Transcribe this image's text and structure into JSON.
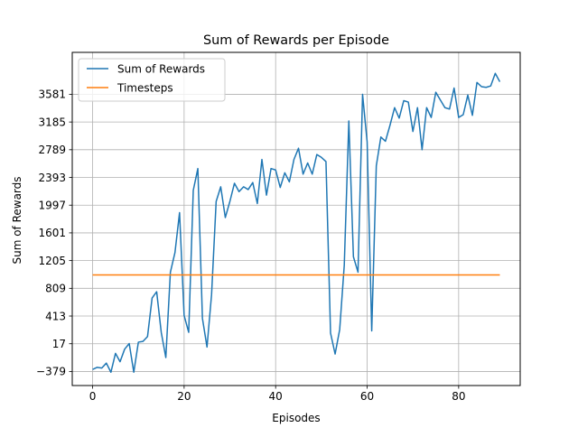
{
  "chart_data": {
    "type": "line",
    "title": "Sum of Rewards per Episode",
    "xlabel": "Episodes",
    "ylabel": "Sum of Rewards",
    "xlim": [
      -4.45,
      93.45
    ],
    "ylim": [
      -580,
      4180
    ],
    "x_ticks": [
      0,
      20,
      40,
      60,
      80
    ],
    "y_ticks": [
      -379,
      17,
      413,
      809,
      1205,
      1601,
      1997,
      2393,
      2789,
      3185,
      3581
    ],
    "y_tick_labels": [
      "−379",
      "17",
      "413",
      "809",
      "1205",
      "1601",
      "1997",
      "2393",
      "2789",
      "3185",
      "3581"
    ],
    "grid": true,
    "legend_position": "top-left",
    "colors": {
      "Sum of Rewards": "#1f77b4",
      "Timesteps": "#ff7f0e"
    },
    "x": [
      0,
      1,
      2,
      3,
      4,
      5,
      6,
      7,
      8,
      9,
      10,
      11,
      12,
      13,
      14,
      15,
      16,
      17,
      18,
      19,
      20,
      21,
      22,
      23,
      24,
      25,
      26,
      27,
      28,
      29,
      30,
      31,
      32,
      33,
      34,
      35,
      36,
      37,
      38,
      39,
      40,
      41,
      42,
      43,
      44,
      45,
      46,
      47,
      48,
      49,
      50,
      51,
      52,
      53,
      54,
      55,
      56,
      57,
      58,
      59,
      60,
      61,
      62,
      63,
      64,
      65,
      66,
      67,
      68,
      69,
      70,
      71,
      72,
      73,
      74,
      75,
      76,
      77,
      78,
      79,
      80,
      81,
      82,
      83,
      84,
      85,
      86,
      87,
      88,
      89
    ],
    "series": [
      {
        "name": "Sum of Rewards",
        "values": [
          -350,
          -320,
          -330,
          -260,
          -390,
          -120,
          -240,
          -60,
          20,
          -390,
          40,
          50,
          120,
          670,
          760,
          180,
          -180,
          1040,
          1320,
          1890,
          420,
          180,
          2210,
          2520,
          380,
          -30,
          720,
          2050,
          2260,
          1820,
          2050,
          2310,
          2190,
          2260,
          2220,
          2320,
          2020,
          2650,
          2140,
          2520,
          2500,
          2250,
          2460,
          2330,
          2650,
          2810,
          2440,
          2600,
          2440,
          2720,
          2680,
          2620,
          170,
          -130,
          220,
          1140,
          3200,
          1260,
          1040,
          3580,
          2900,
          200,
          2560,
          2970,
          2910,
          3140,
          3390,
          3240,
          3490,
          3470,
          3050,
          3390,
          2790,
          3390,
          3250,
          3610,
          3500,
          3390,
          3370,
          3670,
          3250,
          3290,
          3570,
          3280,
          3750,
          3690,
          3680,
          3700,
          3880,
          3760
        ]
      },
      {
        "name": "Timesteps",
        "values": [
          1000,
          1000,
          1000,
          1000,
          1000,
          1000,
          1000,
          1000,
          1000,
          1000,
          1000,
          1000,
          1000,
          1000,
          1000,
          1000,
          1000,
          1000,
          1000,
          1000,
          1000,
          1000,
          1000,
          1000,
          1000,
          1000,
          1000,
          1000,
          1000,
          1000,
          1000,
          1000,
          1000,
          1000,
          1000,
          1000,
          1000,
          1000,
          1000,
          1000,
          1000,
          1000,
          1000,
          1000,
          1000,
          1000,
          1000,
          1000,
          1000,
          1000,
          1000,
          1000,
          1000,
          1000,
          1000,
          1000,
          1000,
          1000,
          1000,
          1000,
          1000,
          1000,
          1000,
          1000,
          1000,
          1000,
          1000,
          1000,
          1000,
          1000,
          1000,
          1000,
          1000,
          1000,
          1000,
          1000,
          1000,
          1000,
          1000,
          1000,
          1000,
          1000,
          1000,
          1000,
          1000,
          1000,
          1000,
          1000,
          1000,
          1000
        ]
      }
    ]
  }
}
